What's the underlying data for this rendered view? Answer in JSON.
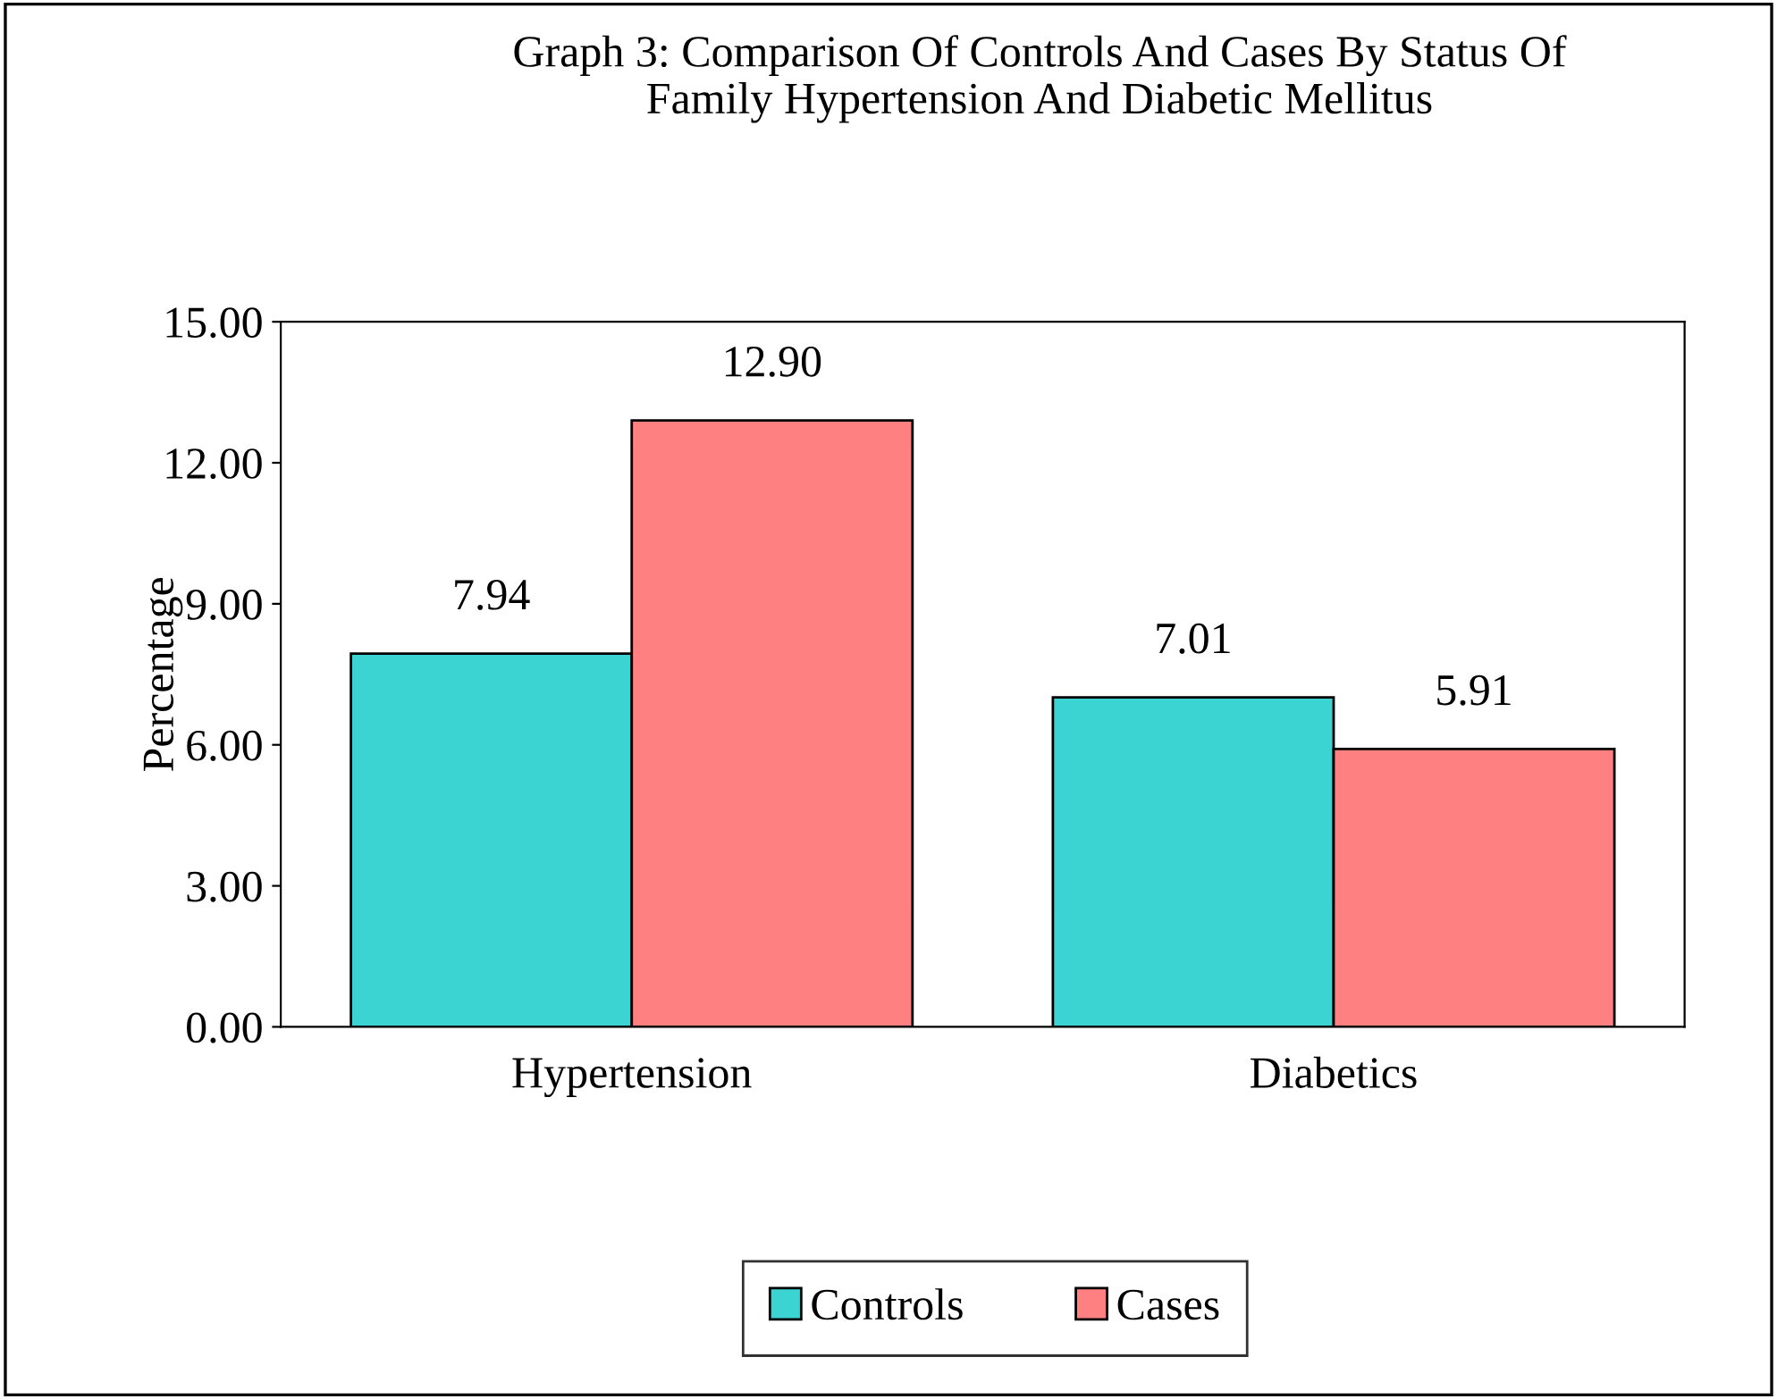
{
  "chart_data": {
    "type": "bar",
    "title": "Graph 3: Comparison Of Controls And Cases By Status Of\nFamily Hypertension And Diabetic Mellitus",
    "ylabel": "Percentage",
    "categories": [
      "Hypertension",
      "Diabetics"
    ],
    "series": [
      {
        "name": "Controls",
        "color": "#3cd3d3",
        "values": [
          7.94,
          7.01
        ],
        "value_labels": [
          "7.94",
          "7.01"
        ]
      },
      {
        "name": "Cases",
        "color": "#ff8080",
        "values": [
          12.9,
          5.91
        ],
        "value_labels": [
          "12.90",
          "5.91"
        ]
      }
    ],
    "ylim": [
      0,
      15
    ],
    "yticks": [
      {
        "value": 0,
        "label": "0.00"
      },
      {
        "value": 3,
        "label": "3.00"
      },
      {
        "value": 6,
        "label": "6.00"
      },
      {
        "value": 9,
        "label": "9.00"
      },
      {
        "value": 12,
        "label": "12.00"
      },
      {
        "value": 15,
        "label": "15.00"
      }
    ],
    "grid": false,
    "legend": "bottom"
  }
}
